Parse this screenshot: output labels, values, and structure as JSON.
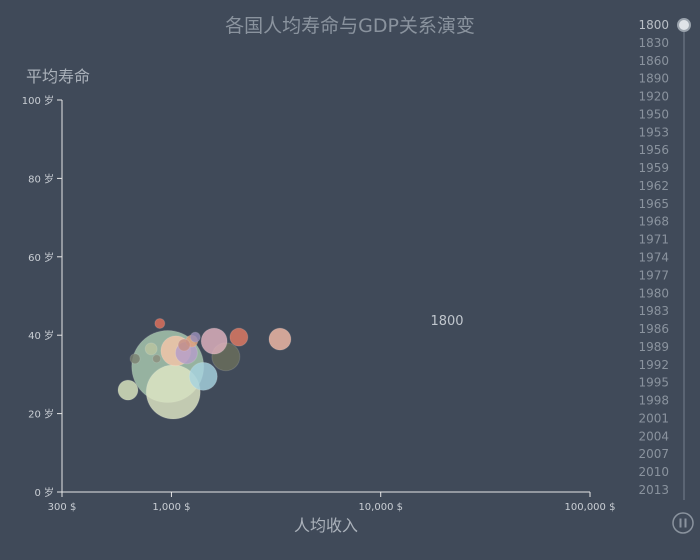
{
  "chart_data": {
    "type": "scatter",
    "title": "各国人均寿命与GDP关系演变",
    "xlabel": "人均收入",
    "ylabel": "平均寿命",
    "x_scale": "log",
    "xlim": [
      300,
      100000
    ],
    "ylim": [
      0,
      100
    ],
    "x_ticks": [
      300,
      1000,
      10000,
      100000
    ],
    "x_tick_labels": [
      "300 $",
      "1,000 $",
      "10,000 $",
      "100,000 $"
    ],
    "y_ticks": [
      0,
      20,
      40,
      60,
      80,
      100
    ],
    "y_tick_labels": [
      "0 岁",
      "20 岁",
      "40 岁",
      "60 岁",
      "80 岁",
      "100 岁"
    ],
    "current_year": "1800",
    "points": [
      {
        "income": 960,
        "life": 32,
        "size": 36,
        "color": "#a9c9b0"
      },
      {
        "income": 1020,
        "life": 25.5,
        "size": 27,
        "color": "#dfe6c4"
      },
      {
        "income": 620,
        "life": 26,
        "size": 10,
        "color": "#dce6c0"
      },
      {
        "income": 1420,
        "life": 29.5,
        "size": 14,
        "color": "#a7d3df"
      },
      {
        "income": 1820,
        "life": 34.5,
        "size": 14,
        "color": "#6b6f5c"
      },
      {
        "income": 1600,
        "life": 38.5,
        "size": 13,
        "color": "#e0b2be"
      },
      {
        "income": 3300,
        "life": 39,
        "size": 11,
        "color": "#f2b9a6"
      },
      {
        "income": 2100,
        "life": 39.5,
        "size": 9,
        "color": "#e07a63"
      },
      {
        "income": 1050,
        "life": 36,
        "size": 15,
        "color": "#f4c6a8"
      },
      {
        "income": 1180,
        "life": 35.5,
        "size": 11,
        "color": "#b49dc9"
      },
      {
        "income": 1250,
        "life": 38.5,
        "size": 6,
        "color": "#e1a07a"
      },
      {
        "income": 1300,
        "life": 39.5,
        "size": 5,
        "color": "#9a8fb8"
      },
      {
        "income": 880,
        "life": 43,
        "size": 5,
        "color": "#e0705b"
      },
      {
        "income": 670,
        "life": 34,
        "size": 5,
        "color": "#7a8070"
      },
      {
        "income": 850,
        "life": 34,
        "size": 4,
        "color": "#8c8f7e"
      },
      {
        "income": 1150,
        "life": 37.5,
        "size": 6,
        "color": "#c58f86"
      },
      {
        "income": 800,
        "life": 36.5,
        "size": 6,
        "color": "#b9c5a0"
      }
    ]
  },
  "timeline": {
    "years": [
      "1800",
      "1830",
      "1860",
      "1890",
      "1920",
      "1950",
      "1953",
      "1956",
      "1959",
      "1962",
      "1965",
      "1968",
      "1971",
      "1974",
      "1977",
      "1980",
      "1983",
      "1986",
      "1989",
      "1992",
      "1995",
      "1998",
      "2001",
      "2004",
      "2007",
      "2010",
      "2013"
    ],
    "active": "1800",
    "play_icon": "pause-icon"
  }
}
